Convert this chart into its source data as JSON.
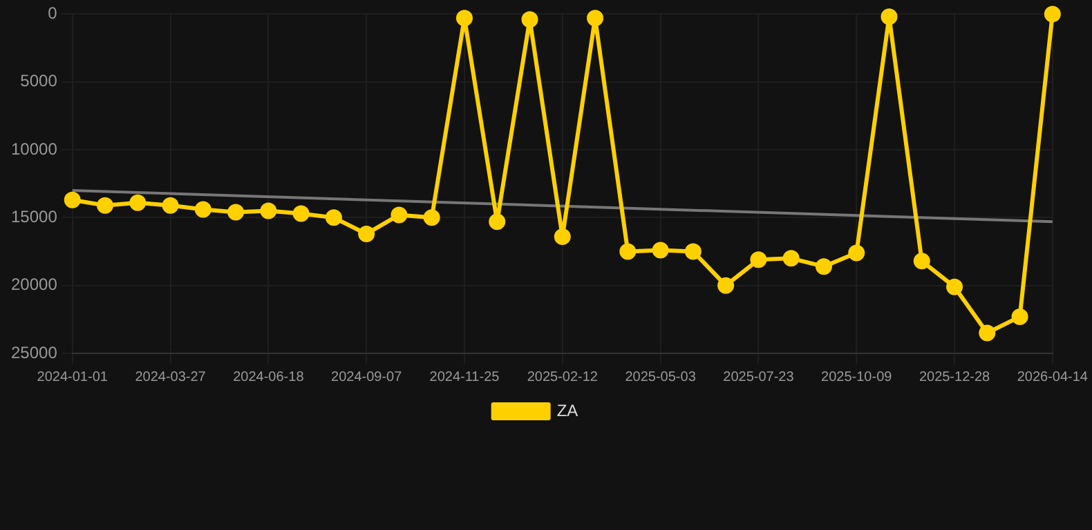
{
  "chart_data": {
    "type": "line",
    "categories": [
      "2024-01-01",
      null,
      null,
      "2024-03-27",
      null,
      null,
      "2024-06-18",
      null,
      null,
      "2024-09-07",
      null,
      null,
      "2024-11-25",
      null,
      null,
      "2025-02-12",
      null,
      null,
      "2025-05-03",
      null,
      null,
      "2025-07-23",
      null,
      null,
      "2025-10-09",
      null,
      null,
      "2025-12-28",
      null,
      null,
      "2026-04-14"
    ],
    "series": [
      {
        "name": "ZA",
        "color": "#ffd000",
        "marker": "circle",
        "values": [
          13700,
          14100,
          13900,
          14100,
          14400,
          14600,
          14500,
          14700,
          15000,
          16200,
          14800,
          15000,
          300,
          15300,
          400,
          16400,
          300,
          17500,
          17400,
          17500,
          20000,
          18100,
          18000,
          18600,
          17600,
          200,
          18200,
          20100,
          23500,
          22300,
          0
        ]
      },
      {
        "type": "line",
        "color": "#777777",
        "marker": "none",
        "values": [
          13000,
          null,
          null,
          null,
          null,
          null,
          null,
          null,
          null,
          null,
          null,
          null,
          null,
          null,
          null,
          null,
          null,
          null,
          null,
          null,
          null,
          null,
          null,
          null,
          null,
          null,
          null,
          null,
          null,
          null,
          15300
        ]
      }
    ],
    "ylim": [
      25000,
      0
    ],
    "yticks": [
      0,
      5000,
      10000,
      15000,
      20000,
      25000
    ],
    "grid": true,
    "legend": "bottom"
  }
}
